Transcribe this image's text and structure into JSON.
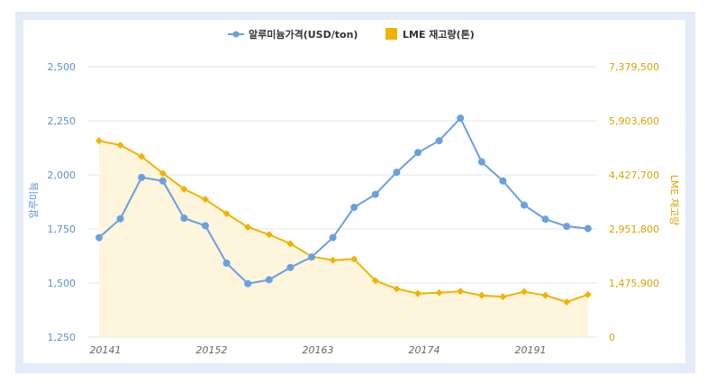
{
  "colors": {
    "price": "#6aa0e0",
    "stock": "#f0b400",
    "stock_fill": "#fdf5dc",
    "grid": "#e6e6e6",
    "left_axis": "#5b8fd6",
    "right_axis": "#d7a400",
    "x_axis": "#666666",
    "frame": "#e4ecf7"
  },
  "chart_data": {
    "type": "line",
    "legend": {
      "position": "top-center",
      "items": [
        {
          "label": "알루미늄가격(USD/ton)",
          "marker": "circle-line"
        },
        {
          "label": "LME 재고량(톤)",
          "marker": "square"
        }
      ]
    },
    "x_tick_labels": [
      "20141",
      "20152",
      "20163",
      "20174",
      "20191"
    ],
    "x_tick_index": [
      0,
      5,
      10,
      15,
      20
    ],
    "y_left": {
      "label": "알루미늄",
      "ticks": [
        "1,250",
        "1,500",
        "1,750",
        "2,000",
        "2,250",
        "2,500"
      ],
      "range": [
        1250,
        2500
      ]
    },
    "y_right": {
      "label": "LME 재고량",
      "ticks": [
        "0",
        "1,475,900",
        "2,951,800",
        "4,427,700",
        "5,903,600",
        "7,379,500"
      ],
      "range": [
        0,
        7379500
      ]
    },
    "grid": true,
    "series": [
      {
        "name": "알루미늄가격(USD/ton)",
        "axis": "left",
        "marker": "circle",
        "values": [
          1710,
          1797,
          1988,
          1972,
          1800,
          1765,
          1592,
          1497,
          1515,
          1572,
          1620,
          1710,
          1850,
          1910,
          2012,
          2103,
          2158,
          2262,
          2060,
          1972,
          1860,
          1795,
          1762,
          1752
        ]
      },
      {
        "name": "LME 재고량(톤)",
        "axis": "right",
        "marker": "diamond",
        "area": true,
        "values": [
          5360000,
          5240000,
          4930000,
          4470000,
          4040000,
          3760000,
          3370000,
          3000000,
          2800000,
          2550000,
          2200000,
          2100000,
          2130000,
          1540000,
          1320000,
          1190000,
          1210000,
          1250000,
          1140000,
          1100000,
          1240000,
          1140000,
          960000,
          1160000
        ]
      }
    ]
  }
}
